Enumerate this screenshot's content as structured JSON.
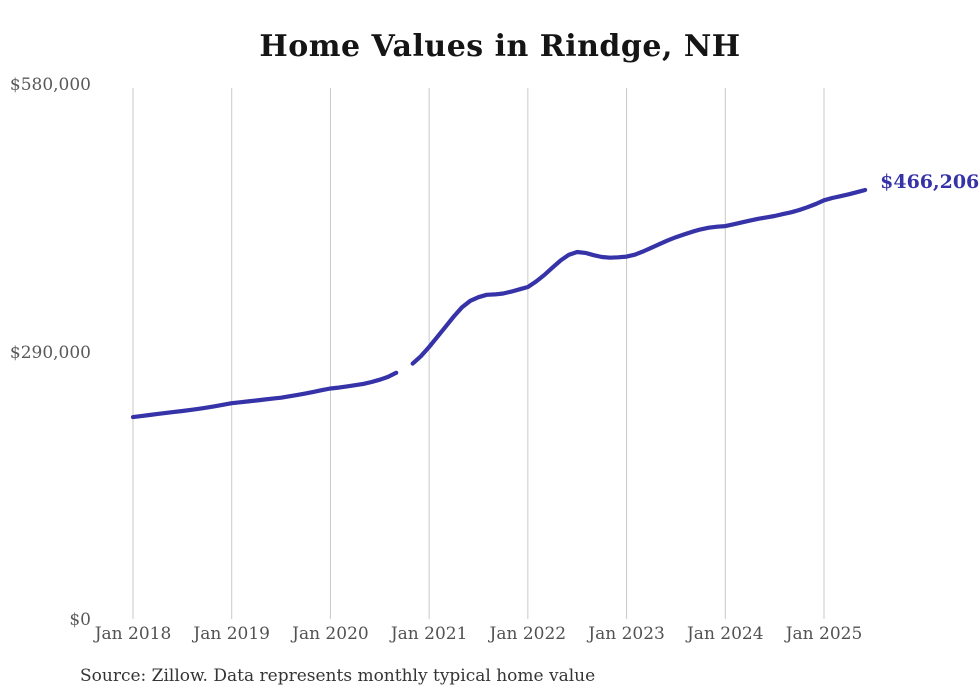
{
  "title": "Home Values in Rindge, NH",
  "source": "Source: Zillow. Data represents monthly typical home value",
  "colors": {
    "line": "#3632a8",
    "annotation": "#3632a8",
    "grid": "#c9c9c9",
    "axis_text": "#595959",
    "title_text": "#151515",
    "source_text": "#343434",
    "background": "#ffffff"
  },
  "chart_data": {
    "type": "line",
    "title": "Home Values in Rindge, NH",
    "xlabel": "",
    "ylabel": "",
    "ylim": [
      0,
      580000
    ],
    "grid": "vertical-only",
    "legend": "none",
    "last_value_annotation": "$466,206",
    "yticks": [
      {
        "value": 0,
        "label": "$0"
      },
      {
        "value": 290000,
        "label": "$290,000"
      },
      {
        "value": 580000,
        "label": "$580,000"
      }
    ],
    "xticks": [
      {
        "month": "2018-01",
        "label": "Jan 2018"
      },
      {
        "month": "2019-01",
        "label": "Jan 2019"
      },
      {
        "month": "2020-01",
        "label": "Jan 2020"
      },
      {
        "month": "2021-01",
        "label": "Jan 2021"
      },
      {
        "month": "2022-01",
        "label": "Jan 2022"
      },
      {
        "month": "2023-01",
        "label": "Jan 2023"
      },
      {
        "month": "2024-01",
        "label": "Jan 2024"
      },
      {
        "month": "2025-01",
        "label": "Jan 2025"
      }
    ],
    "x": [
      "2018-01",
      "2018-02",
      "2018-03",
      "2018-04",
      "2018-05",
      "2018-06",
      "2018-07",
      "2018-08",
      "2018-09",
      "2018-10",
      "2018-11",
      "2018-12",
      "2019-01",
      "2019-02",
      "2019-03",
      "2019-04",
      "2019-05",
      "2019-06",
      "2019-07",
      "2019-08",
      "2019-09",
      "2019-10",
      "2019-11",
      "2019-12",
      "2020-01",
      "2020-02",
      "2020-03",
      "2020-04",
      "2020-05",
      "2020-06",
      "2020-07",
      "2020-08",
      "2020-09",
      "2020-10",
      "2020-11",
      "2020-12",
      "2021-01",
      "2021-02",
      "2021-03",
      "2021-04",
      "2021-05",
      "2021-06",
      "2021-07",
      "2021-08",
      "2021-09",
      "2021-10",
      "2021-11",
      "2021-12",
      "2022-01",
      "2022-02",
      "2022-03",
      "2022-04",
      "2022-05",
      "2022-06",
      "2022-07",
      "2022-08",
      "2022-09",
      "2022-10",
      "2022-11",
      "2022-12",
      "2023-01",
      "2023-02",
      "2023-03",
      "2023-04",
      "2023-05",
      "2023-06",
      "2023-07",
      "2023-08",
      "2023-09",
      "2023-10",
      "2023-11",
      "2023-12",
      "2024-01",
      "2024-02",
      "2024-03",
      "2024-04",
      "2024-05",
      "2024-06",
      "2024-07",
      "2024-08",
      "2024-09",
      "2024-10",
      "2024-11",
      "2024-12",
      "2025-01",
      "2025-02",
      "2025-03",
      "2025-04",
      "2025-05",
      "2025-06"
    ],
    "values": [
      220000,
      221000,
      222200,
      223400,
      224500,
      225600,
      226600,
      227800,
      229000,
      230300,
      231800,
      233400,
      235000,
      236000,
      237000,
      238000,
      239000,
      240000,
      241000,
      242500,
      244000,
      245700,
      247400,
      249200,
      251000,
      252000,
      253200,
      254500,
      256000,
      258000,
      260500,
      263500,
      268000,
      null,
      278000,
      286000,
      296000,
      307000,
      318000,
      329000,
      339000,
      346000,
      350000,
      352500,
      353000,
      354000,
      356000,
      358500,
      361000,
      367000,
      374000,
      382000,
      390000,
      396000,
      399000,
      398000,
      395500,
      393500,
      392800,
      393200,
      394000,
      396000,
      399500,
      403500,
      407500,
      411500,
      415000,
      418000,
      421000,
      423500,
      425300,
      426400,
      427000,
      429000,
      431000,
      433000,
      435000,
      436500,
      438000,
      440000,
      442000,
      444500,
      447500,
      451000,
      455000,
      457500,
      459500,
      461500,
      463800,
      466206
    ]
  }
}
